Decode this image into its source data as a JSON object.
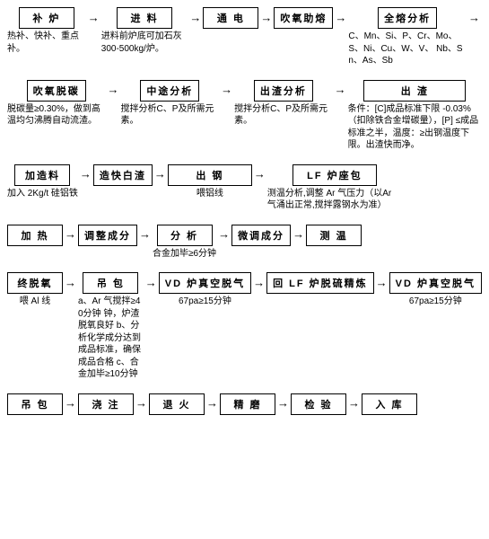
{
  "rows": [
    {
      "cells": [
        {
          "label": "补  炉",
          "caption": "热补、快补、重点补。"
        },
        {
          "label": "进  料",
          "caption": "进料前炉底可加石灰 300-500kg/炉。"
        },
        {
          "label": "通  电",
          "caption": ""
        },
        {
          "label": "吹氧助熔",
          "caption": ""
        },
        {
          "label": "全熔分析",
          "caption": "C、Mn、Si、P、Cr、Mo、 S、Ni、Cu、W、V、 Nb、Sn、As、Sb",
          "trailingArrow": true,
          "wider": true
        }
      ]
    },
    {
      "cells": [
        {
          "label": "吹氧脱碳",
          "caption": "脱碳量≥0.30%，做到高温均匀沸腾自动流渣。"
        },
        {
          "label": "中途分析",
          "caption": "搅拌分析C、P及所需元素。"
        },
        {
          "label": "出渣分析",
          "caption": "搅拌分析C、P及所需元素。"
        },
        {
          "label": "出    渣",
          "caption": "条件：[C]成品标准下限 -0.03%（扣除铁合金增碳量），[P] ≤成品标准之半，温度：≥出钢温度下限。出渣快而净。",
          "cls": "xwide",
          "wider": true
        }
      ]
    },
    {
      "cells": [
        {
          "label": "加造料",
          "caption": "加入 2Kg/t 硅铝铁"
        },
        {
          "label": "造快白渣",
          "caption": ""
        },
        {
          "label": "出    钢",
          "caption": "喂铝线",
          "cls": "wide"
        },
        {
          "label": "LF 炉座包",
          "caption": "测温分析,调整 Ar 气压力（以Ar 气涌出正常,搅拌露钢水为准）",
          "cls": "wide",
          "wider": true
        }
      ]
    },
    {
      "cells": [
        {
          "label": "加  热",
          "caption": ""
        },
        {
          "label": "调整成分",
          "caption": ""
        },
        {
          "label": "分  析",
          "caption": "合金加毕≥6分钟",
          "capAlign": "center"
        },
        {
          "label": "微调成分",
          "caption": ""
        },
        {
          "label": "测  温",
          "caption": ""
        }
      ]
    },
    {
      "cells": [
        {
          "label": "终脱氧",
          "caption": "喂 Al 线"
        },
        {
          "label": "吊  包",
          "caption": "a、Ar 气搅拌≥40分钟\n钟，炉渣脱氧良好\nb、分析化学成分达到\n成品标准，确保成品合格\nc、合金加毕≥10分钟",
          "wider": true
        },
        {
          "label": "VD 炉真空脱气",
          "caption": "67pa≥15分钟",
          "cls": "wide"
        },
        {
          "label": "回 LF 炉脱硫精炼",
          "caption": "",
          "cls": "wide"
        },
        {
          "label": "VD 炉真空脱气",
          "caption": "67pa≥15分钟",
          "cls": "wide"
        }
      ]
    },
    {
      "cells": [
        {
          "label": "吊 包",
          "caption": ""
        },
        {
          "label": "浇 注",
          "caption": ""
        },
        {
          "label": "退 火",
          "caption": ""
        },
        {
          "label": "精 磨",
          "caption": ""
        },
        {
          "label": "检 验",
          "caption": ""
        },
        {
          "label": "入 库",
          "caption": ""
        }
      ]
    }
  ],
  "arrowGlyph": "→"
}
